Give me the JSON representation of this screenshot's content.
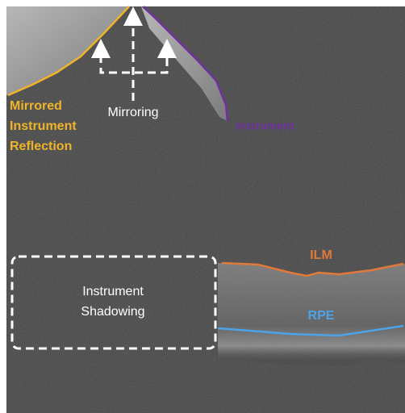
{
  "labels": {
    "mirrored_reflection": [
      "Mirrored",
      "Instrument",
      "Reflection"
    ],
    "mirroring": "Mirroring",
    "instrument": "Instrument",
    "ilm": "ILM",
    "shadowing": [
      "Instrument",
      "Shadowing"
    ],
    "rpe": "RPE"
  }
}
